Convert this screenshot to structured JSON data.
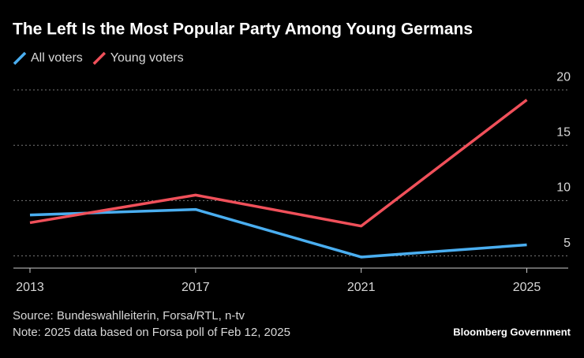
{
  "chart_data": {
    "type": "line",
    "title": "The Left Is the Most Popular Party Among Young Germans",
    "x": [
      2013,
      2017,
      2021,
      2025
    ],
    "series": [
      {
        "name": "All voters",
        "color": "#4aaef0",
        "values": [
          8.7,
          9.2,
          4.9,
          6.0
        ]
      },
      {
        "name": "Young voters",
        "color": "#f0505a",
        "values": [
          8.0,
          10.5,
          7.7,
          19.1
        ]
      }
    ],
    "xlim": [
      2012.6,
      2026
    ],
    "xticks": [
      2013,
      2017,
      2021,
      2025
    ],
    "ylim": [
      3.9,
      21
    ],
    "yticks": [
      5,
      10,
      15,
      20
    ],
    "grid": true,
    "legend": "top-left",
    "source": "Source: Bundeswahlleiterin, Forsa/RTL, n-tv",
    "note": "Note: 2025 data based on Forsa poll of Feb 12, 2025",
    "brand": "Bloomberg Government"
  }
}
